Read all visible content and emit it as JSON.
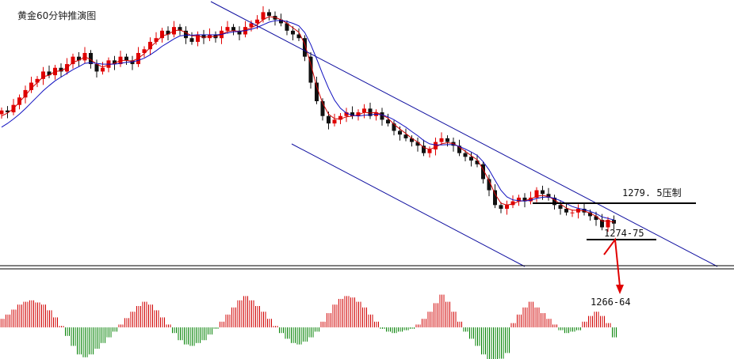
{
  "chart_data": {
    "type": "candlestick",
    "title": "黄金60分钟推演图",
    "indicator": "histogram (MACD-style) below price panel",
    "colors": {
      "up": "#e00000",
      "down": "#111111",
      "ma_fast": "#d00000",
      "ma_slow": "#1010c0",
      "channel": "#1010a0",
      "hist_up": "#d00000",
      "hist_down": "#008000",
      "arrow": "#e00000",
      "level_line": "#000000"
    },
    "y_range_estimate": [
      1262,
      1330
    ],
    "closes": [
      1301.5,
      1301,
      1303,
      1305,
      1307,
      1309,
      1310,
      1312,
      1311,
      1313,
      1312,
      1314,
      1316,
      1315,
      1317,
      1314,
      1312,
      1313,
      1315,
      1314,
      1316,
      1315,
      1314,
      1317,
      1318,
      1320,
      1321,
      1323,
      1322,
      1324,
      1323,
      1321,
      1320,
      1322,
      1321,
      1322,
      1321,
      1323,
      1324,
      1323,
      1322,
      1324,
      1325,
      1326,
      1328,
      1327,
      1326,
      1325,
      1323,
      1322,
      1321,
      1316,
      1309,
      1304,
      1300,
      1298,
      1299,
      1300,
      1301,
      1300,
      1301,
      1302,
      1300,
      1301,
      1299,
      1298,
      1296,
      1295,
      1294,
      1293,
      1292,
      1290,
      1291,
      1293,
      1294,
      1293,
      1292,
      1290,
      1289,
      1288,
      1287,
      1283,
      1280,
      1276,
      1275,
      1276,
      1277,
      1278,
      1277,
      1278,
      1280,
      1279,
      1278,
      1276,
      1275,
      1274,
      1274,
      1275,
      1274,
      1273,
      1272,
      1270,
      1272,
      1271
    ],
    "ma_fast": [
      1300,
      1300.8,
      1302,
      1303.8,
      1305.5,
      1307.5,
      1309,
      1310.6,
      1311,
      1312,
      1312.2,
      1313,
      1314.5,
      1315,
      1316,
      1315.2,
      1314,
      1313.2,
      1313.8,
      1314.2,
      1315,
      1315,
      1314.8,
      1315.6,
      1316.8,
      1318.5,
      1320,
      1321.6,
      1322,
      1323,
      1323.2,
      1322.5,
      1321.6,
      1321.6,
      1321.2,
      1321.4,
      1321.4,
      1322,
      1322.8,
      1323,
      1322.8,
      1323.2,
      1323.8,
      1324.6,
      1326,
      1326.8,
      1326.6,
      1326,
      1325,
      1323.8,
      1322.6,
      1319.4,
      1314,
      1308,
      1303.5,
      1300.5,
      1299.3,
      1299.2,
      1299.8,
      1300,
      1300.3,
      1301,
      1300.8,
      1301,
      1300.3,
      1299.4,
      1297.8,
      1296.5,
      1295.3,
      1294,
      1293,
      1291.5,
      1291,
      1291.6,
      1292.5,
      1292.8,
      1292.6,
      1291.6,
      1290.5,
      1289.3,
      1288.2,
      1285.6,
      1282.6,
      1279,
      1276.5,
      1276,
      1276.3,
      1277,
      1277.2,
      1277.6,
      1278.4,
      1278.6,
      1278.3,
      1277.4,
      1276.3,
      1275.2,
      1274.6,
      1274.6,
      1274.4,
      1273.8,
      1273,
      1271.7,
      1271.7,
      1271.4
    ],
    "ma_slow": [
      1297,
      1298,
      1299.2,
      1300.5,
      1302,
      1303.6,
      1305.2,
      1306.8,
      1308.2,
      1309.5,
      1310.5,
      1311.5,
      1312.5,
      1313.3,
      1314.2,
      1314.4,
      1314.2,
      1314,
      1314,
      1314,
      1314.2,
      1314.5,
      1314.6,
      1315,
      1315.6,
      1316.5,
      1317.6,
      1318.8,
      1319.8,
      1320.8,
      1321.6,
      1321.8,
      1321.8,
      1321.9,
      1321.9,
      1321.9,
      1321.9,
      1322,
      1322.4,
      1322.7,
      1322.8,
      1323,
      1323.4,
      1323.9,
      1324.6,
      1325.3,
      1325.7,
      1325.8,
      1325.5,
      1325,
      1324.3,
      1322.5,
      1319.3,
      1315.4,
      1311.3,
      1307.5,
      1304.3,
      1302.1,
      1300.8,
      1300.2,
      1300,
      1300.2,
      1300.3,
      1300.5,
      1300.3,
      1299.8,
      1299,
      1298,
      1297,
      1295.8,
      1294.7,
      1293.4,
      1292.5,
      1292.2,
      1292.2,
      1292.3,
      1292.3,
      1291.8,
      1291.1,
      1290.3,
      1289.4,
      1287.7,
      1285.5,
      1282.7,
      1280,
      1278.2,
      1277.4,
      1277.2,
      1277.1,
      1277.3,
      1277.8,
      1278.1,
      1278.2,
      1277.8,
      1277.2,
      1276.4,
      1275.6,
      1275.1,
      1274.8,
      1274.3,
      1273.7,
      1272.8,
      1272.4,
      1272
    ],
    "histogram": [
      1.2,
      1.8,
      2.5,
      3.2,
      3.6,
      3.8,
      3.5,
      3.2,
      2.4,
      1.4,
      0.2,
      -1.2,
      -2.6,
      -3.8,
      -4.2,
      -3.8,
      -3.0,
      -2.2,
      -1.4,
      -0.6,
      0.4,
      1.3,
      2.2,
      3.0,
      3.6,
      3.2,
      2.4,
      1.4,
      0.4,
      -0.8,
      -1.8,
      -2.4,
      -2.6,
      -2.2,
      -1.8,
      -1.0,
      -0.2,
      0.8,
      1.8,
      2.8,
      3.8,
      4.4,
      3.8,
      3.0,
      2.2,
      1.2,
      0.2,
      -0.8,
      -1.6,
      -2.2,
      -2.4,
      -2.0,
      -1.4,
      -0.6,
      0.8,
      2.0,
      3.2,
      4.0,
      4.4,
      4.2,
      3.6,
      2.8,
      1.8,
      0.8,
      -0.2,
      -0.6,
      -0.8,
      -0.6,
      -0.4,
      -0.2,
      0.4,
      1.2,
      2.2,
      3.4,
      4.6,
      3.6,
      2.2,
      0.8,
      -0.6,
      -1.6,
      -2.6,
      -3.8,
      -4.6,
      -4.8,
      -4.4,
      -3.6,
      0.6,
      1.8,
      2.8,
      3.6,
      2.8,
      2.0,
      1.2,
      0.4,
      -0.4,
      -0.8,
      -0.6,
      -0.4,
      0.8,
      1.6,
      2.2,
      1.6,
      0.6,
      -1.4
    ],
    "annotations": [
      {
        "label": "1279. 5压制",
        "level": 1279.5
      },
      {
        "label": "1274-75",
        "level": 1274.5
      },
      {
        "label": "1266-64",
        "level": 1265
      }
    ]
  }
}
